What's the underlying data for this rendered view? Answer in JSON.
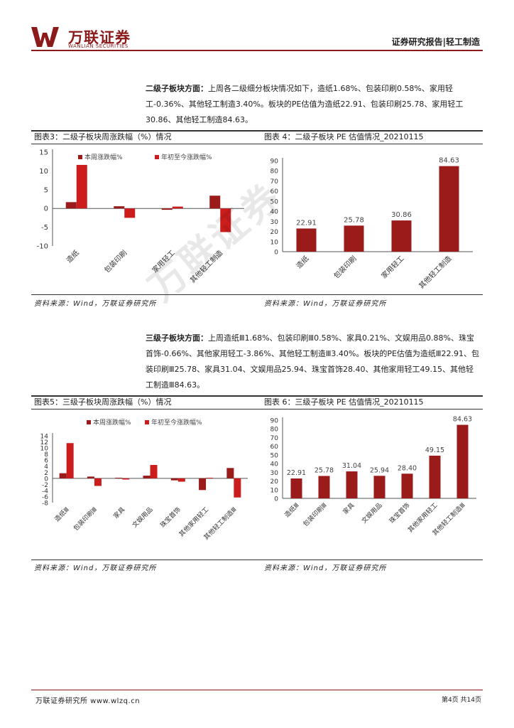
{
  "header": {
    "logo_cn": "万联证券",
    "logo_en": "WANLIAN SECURITIES",
    "report_type": "证券研究报告|轻工制造"
  },
  "para1": {
    "lead": "二级子板块方面：",
    "text": "上周各二级细分板块情况如下，造纸1.68%、包装印刷0.58%、家用轻工-0.36%、其他轻工制造3.40%。板块的PE估值为造纸22.91、包装印刷25.78、家用轻工30.86、其他轻工制造84.63。"
  },
  "para2": {
    "lead": "三级子板块方面：",
    "text": "上周造纸Ⅲ1.68%、包装印刷Ⅲ0.58%、家具0.21%、文娱用品0.88%、珠宝首饰-0.66%、其他家用轻工-3.86%、其他轻工制造Ⅲ3.40%。板块的PE估值为造纸Ⅲ22.91、包装印刷Ⅲ25.78、家具31.04、文娱用品25.94、珠宝首饰28.40、其他家用轻工49.15、其他轻工制造Ⅲ84.63。"
  },
  "figures": {
    "fig3_title": "图表3：二级子板块周涨跌幅（%）情况",
    "fig4_title": "图表 4：二级子板块 PE 估值情况_20210115",
    "fig5_title": "图表5：三级子板块周涨跌幅（%）情况",
    "fig6_title": "图表 6：三级子板块 PE 估值情况_20210115",
    "source": "资料来源：Wind，万联证券研究所"
  },
  "footer": {
    "left": "万联证券研究所 www.wlzq.cn",
    "right": "第4页 共14页"
  },
  "watermark": "万联证券",
  "colors": {
    "brand": "#8b1a1a",
    "bar_dark": "#9b1a1a",
    "bar_light": "#cc1d1d"
  },
  "chart_data": [
    {
      "type": "bar",
      "categories": [
        "造纸",
        "包装印刷",
        "家用轻工",
        "其他轻工制造"
      ],
      "series": [
        {
          "name": "本周涨跌幅%",
          "values": [
            1.68,
            0.58,
            -0.36,
            3.4
          ]
        },
        {
          "name": "年初至今涨跌幅%",
          "values": [
            11.6,
            -2.5,
            0.5,
            -6.3
          ]
        }
      ],
      "ylim": [
        -10,
        15
      ],
      "yticks": [
        "15",
        "10",
        "5",
        "0",
        "-5",
        "-10"
      ],
      "legend": "top"
    },
    {
      "type": "bar",
      "categories": [
        "造纸",
        "包装印刷",
        "家用轻工",
        "其他轻工制造"
      ],
      "values": [
        22.91,
        25.78,
        30.86,
        84.63
      ],
      "labels": [
        "22.91",
        "25.78",
        "30.86",
        "84.63"
      ],
      "ylim": [
        0,
        90
      ],
      "yticks": [
        "90",
        "80",
        "70",
        "60",
        "50",
        "40",
        "30",
        "20",
        "10",
        "0"
      ]
    },
    {
      "type": "bar",
      "categories": [
        "造纸Ⅲ",
        "包装印刷Ⅲ",
        "家具",
        "文娱用品",
        "珠宝首饰",
        "其他家用轻工",
        "其他轻工制造Ⅲ"
      ],
      "series": [
        {
          "name": "本周涨跌幅%",
          "values": [
            1.68,
            0.58,
            0.21,
            0.88,
            -0.66,
            -3.86,
            3.4
          ]
        },
        {
          "name": "年初至今涨跌幅%",
          "values": [
            11.6,
            -2.5,
            -0.4,
            4.4,
            -1.1,
            0.2,
            -6.3
          ]
        }
      ],
      "ylim": [
        -8,
        14
      ],
      "yticks": [
        "14",
        "12",
        "10",
        "8",
        "6",
        "4",
        "2",
        "0",
        "-2",
        "-4",
        "-6",
        "-8"
      ],
      "legend": "top"
    },
    {
      "type": "bar",
      "categories": [
        "造纸Ⅲ",
        "包装印刷Ⅲ",
        "家具",
        "文娱用品",
        "珠宝首饰",
        "其他家用轻工",
        "其他轻工制造Ⅲ"
      ],
      "values": [
        22.91,
        25.78,
        31.04,
        25.94,
        28.4,
        49.15,
        84.63
      ],
      "labels": [
        "22.91",
        "25.78",
        "31.04",
        "25.94",
        "28.40",
        "49.15",
        "84.63"
      ],
      "ylim": [
        0,
        90
      ],
      "yticks": [
        "90",
        "80",
        "70",
        "60",
        "50",
        "40",
        "30",
        "20",
        "10",
        "0"
      ]
    }
  ]
}
